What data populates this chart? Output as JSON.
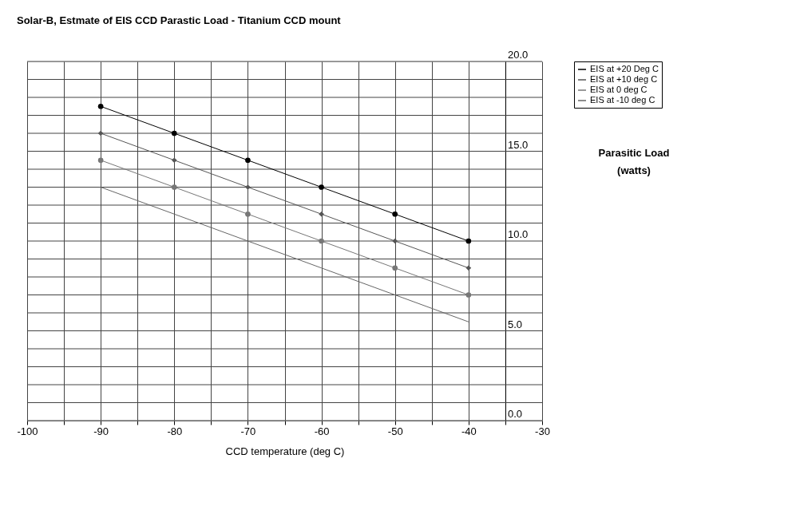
{
  "chart_data": {
    "type": "line",
    "title": "Solar-B, Estmate of EIS CCD Parastic Load - Titanium CCD mount",
    "xlabel": "CCD temperature (deg C)",
    "ylabel": "Parasitic Load (watts)",
    "x": [
      -90,
      -80,
      -70,
      -60,
      -50,
      -40
    ],
    "series": [
      {
        "name": "EIS at +20 Deg C",
        "color": "#000000",
        "marker": "circle",
        "values": [
          17.5,
          16,
          14.5,
          13,
          11.5,
          10
        ]
      },
      {
        "name": "EIS at +10 deg C",
        "color": "#555555",
        "marker": "diamond",
        "values": [
          16,
          14.5,
          13,
          11.5,
          10,
          8.5
        ]
      },
      {
        "name": "EIS at   0 deg C",
        "color": "#777777",
        "marker": "circle",
        "values": [
          14.5,
          13,
          11.5,
          10,
          8.5,
          7
        ]
      },
      {
        "name": "EIS at  -10 deg C",
        "color": "#666666",
        "marker": "none",
        "values": [
          13,
          11.5,
          10,
          8.5,
          7,
          5.5
        ]
      }
    ],
    "xlim": [
      -100,
      -30
    ],
    "xticks": [
      -100,
      {
        "value": -95,
        "label": null
      },
      -90,
      {
        "value": -85,
        "label": null
      },
      -80,
      {
        "value": -75,
        "label": null
      },
      -70,
      {
        "value": -65,
        "label": null
      },
      -60,
      {
        "value": -55,
        "label": null
      },
      -50,
      {
        "value": -45,
        "label": null
      },
      -40,
      {
        "value": -35,
        "label": null
      },
      -30
    ],
    "ylim": [
      0,
      20
    ],
    "yticks": [
      {
        "value": 0,
        "label": "0.0"
      },
      {
        "value": 1,
        "label": null
      },
      {
        "value": 2,
        "label": null
      },
      {
        "value": 3,
        "label": null
      },
      {
        "value": 4,
        "label": null
      },
      {
        "value": 5,
        "label": "5.0"
      },
      {
        "value": 6,
        "label": null
      },
      {
        "value": 7,
        "label": null
      },
      {
        "value": 8,
        "label": null
      },
      {
        "value": 9,
        "label": null
      },
      {
        "value": 10,
        "label": "10.0"
      },
      {
        "value": 11,
        "label": null
      },
      {
        "value": 12,
        "label": null
      },
      {
        "value": 13,
        "label": null
      },
      {
        "value": 14,
        "label": null
      },
      {
        "value": 15,
        "label": "15.0"
      },
      {
        "value": 16,
        "label": null
      },
      {
        "value": 17,
        "label": null
      },
      {
        "value": 18,
        "label": null
      },
      {
        "value": 19,
        "label": null
      },
      {
        "value": 20,
        "label": "20.0"
      }
    ],
    "grid": true,
    "legend": "right",
    "line_style": "solid"
  }
}
